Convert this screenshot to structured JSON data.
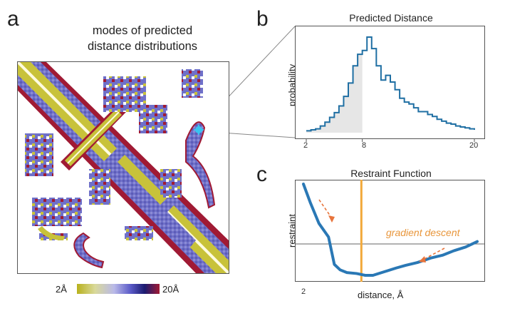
{
  "panels": {
    "a": {
      "letter": "a",
      "title_line1": "modes of predicted",
      "title_line2": "distance distributions",
      "colorbar": {
        "min_label": "2Å",
        "max_label": "20Å"
      }
    },
    "b": {
      "letter": "b",
      "title": "Predicted Distance",
      "ylabel": "probability",
      "x_ticks": [
        "2",
        "8",
        "20"
      ]
    },
    "c": {
      "letter": "c",
      "title": "Restraint Function",
      "ylabel": "restraint",
      "xlabel": "distance, Å",
      "x_tick": "2",
      "annotation": "gradient descent"
    }
  },
  "colors": {
    "step_line": "#1f6fa3",
    "shade": "#e6e6e6",
    "restraint_curve": "#2a78b5",
    "mode_line": "#f2a93b",
    "arrow": "#e8743b",
    "annotation": "#e8963b",
    "map_yellow": "#c8c23a",
    "map_blue": "#6f70c9",
    "map_red": "#a01a34"
  },
  "chart_data": [
    {
      "type": "line",
      "title": "Predicted Distance",
      "xlabel": "",
      "ylabel": "probability",
      "xlim": [
        2,
        20
      ],
      "x_ticks": [
        2,
        8,
        20
      ],
      "shaded_range": [
        2,
        8
      ],
      "x": [
        2,
        2.5,
        3,
        3.5,
        4,
        4.5,
        5,
        5.5,
        6,
        6.5,
        7,
        7.5,
        8,
        8.5,
        9,
        9.5,
        10,
        10.5,
        11,
        11.5,
        12,
        12.5,
        13,
        13.5,
        14,
        14.5,
        15,
        15.5,
        16,
        16.5,
        17,
        17.5,
        18,
        18.5,
        19,
        19.5,
        20
      ],
      "values": [
        0.02,
        0.03,
        0.04,
        0.07,
        0.11,
        0.16,
        0.21,
        0.28,
        0.38,
        0.52,
        0.7,
        0.82,
        0.86,
        1.0,
        0.88,
        0.7,
        0.55,
        0.6,
        0.53,
        0.45,
        0.36,
        0.32,
        0.3,
        0.26,
        0.22,
        0.22,
        0.19,
        0.17,
        0.14,
        0.12,
        0.1,
        0.09,
        0.07,
        0.06,
        0.05,
        0.04,
        0.03
      ]
    },
    {
      "type": "line",
      "title": "Restraint Function",
      "xlabel": "distance, Å",
      "ylabel": "restraint",
      "x_ticks": [
        2
      ],
      "mode_x": 8,
      "x": [
        2,
        2.7,
        3.6,
        4.6,
        5.2,
        5.8,
        6.5,
        7.5,
        8.4,
        9.2,
        10.4,
        11.6,
        12.6,
        13.8,
        15.2,
        16.4,
        17.6,
        18.8,
        20
      ],
      "values": [
        1.0,
        0.8,
        0.57,
        0.42,
        0.12,
        0.06,
        0.03,
        0.02,
        0.0,
        0.0,
        0.04,
        0.08,
        0.11,
        0.14,
        0.19,
        0.22,
        0.27,
        0.31,
        0.37
      ],
      "annotation": "gradient descent"
    }
  ]
}
